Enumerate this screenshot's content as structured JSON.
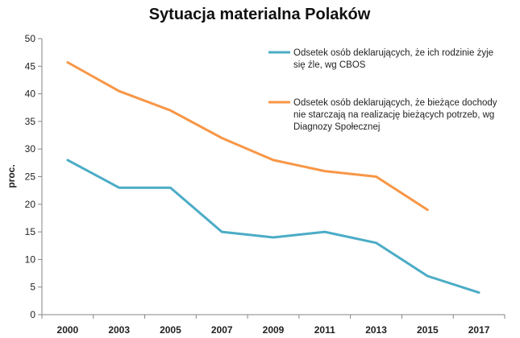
{
  "chart_data": {
    "type": "line",
    "title": "Sytuacja materialna Polaków",
    "xlabel": "",
    "ylabel": "proc.",
    "ylim": [
      0,
      50
    ],
    "y_ticks": [
      "0",
      "5",
      "10",
      "15",
      "20",
      "25",
      "30",
      "35",
      "40",
      "45",
      "50"
    ],
    "categories": [
      "2000",
      "2003",
      "2005",
      "2007",
      "2009",
      "2011",
      "2013",
      "2015",
      "2017"
    ],
    "grid": false,
    "legend_position": "top-right",
    "series": [
      {
        "name": "Odsetek osób deklarujących, że ich rodzinie żyje się źle, wg CBOS",
        "legend_lines": [
          "Odsetek osób deklarujących, że ich rodzinie żyje",
          "się źle, wg CBOS"
        ],
        "color": "#4bacc6",
        "values": [
          28,
          23,
          23,
          15,
          14,
          15,
          13,
          7,
          4
        ]
      },
      {
        "name": "Odsetek osób deklarujących, że bieżące dochody nie starczają na realizację bieżących potrzeb, wg Diagnozy Społecznej",
        "legend_lines": [
          "Odsetek osób deklarujących, że bieżące dochody",
          "nie starczają na realizację bieżących potrzeb, wg",
          "Diagnozy Społecznej"
        ],
        "color": "#f79646",
        "values": [
          45.7,
          40.5,
          37,
          32,
          28,
          26,
          25,
          19,
          null
        ]
      }
    ]
  }
}
